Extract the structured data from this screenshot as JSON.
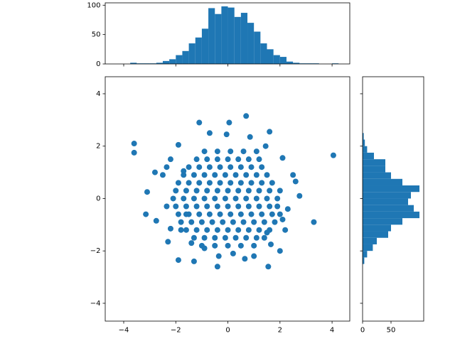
{
  "chart_data": [
    {
      "type": "scatter",
      "color": "#1f77b4",
      "xlim": [
        -4.71,
        4.68
      ],
      "ylim": [
        -4.68,
        4.65
      ],
      "xticks": [
        {
          "value": -4,
          "label": "−4"
        },
        {
          "value": -2,
          "label": "−2"
        },
        0,
        2,
        4
      ],
      "yticks": [
        {
          "value": -4,
          "label": "−4"
        },
        {
          "value": -2,
          "label": "−2"
        },
        0,
        2,
        4
      ],
      "x": [
        -1.0,
        -0.5,
        0.0,
        0.5,
        1.0,
        -1.3,
        -0.9,
        -0.5,
        -0.1,
        0.3,
        0.7,
        1.1,
        1.4,
        -1.6,
        -1.2,
        -0.8,
        -0.4,
        0,
        0.4,
        0.8,
        1.2,
        1.6,
        -1.8,
        -1.4,
        -1.0,
        -0.6,
        -0.2,
        0.2,
        0.6,
        1.0,
        1.4,
        1.8,
        -1.9,
        -1.5,
        -1.1,
        -0.7,
        -0.3,
        0.1,
        0.5,
        0.9,
        1.3,
        1.7,
        2.0,
        -2.0,
        -1.6,
        -1.2,
        -0.8,
        -0.4,
        0,
        0.4,
        0.8,
        1.2,
        1.6,
        1.9,
        -2.1,
        -1.7,
        -1.3,
        -0.9,
        -0.5,
        -0.1,
        0.3,
        0.7,
        1.1,
        1.5,
        1.9,
        -2.0,
        -1.6,
        -1.2,
        -0.8,
        -0.4,
        0,
        0.4,
        0.8,
        1.2,
        1.6,
        2.0,
        -1.9,
        -1.5,
        -1.1,
        -0.7,
        -0.3,
        0.1,
        0.5,
        0.9,
        1.3,
        1.7,
        -1.7,
        -1.3,
        -0.9,
        -0.5,
        -0.1,
        0.3,
        0.7,
        1.1,
        1.5,
        -1.5,
        -1.1,
        -0.7,
        -0.3,
        0.1,
        0.5,
        0.9,
        1.3,
        -1.2,
        -0.8,
        -0.4,
        0,
        0.4,
        0.8,
        1.2,
        -0.9,
        -0.4,
        0.1,
        0.6,
        1.1,
        -3.6,
        -3.6,
        4.05,
        -3.1,
        -3.15,
        -2.75,
        3.3,
        -2.3,
        -1.9,
        -1.3,
        -0.4,
        0.65,
        1.55,
        0.7,
        -1.1,
        0.05,
        1.6,
        0.85,
        -0.7,
        -0.05,
        -1.9,
        -2.8,
        -2.2,
        2.75,
        2.6,
        2.5,
        2.3,
        2.1,
        2.2,
        2.0,
        1.65,
        -2.35,
        -2.2,
        -2.5,
        -2.35,
        -1.7,
        -1.6,
        2.1,
        1.45,
        -0.35,
        0.2,
        1.0,
        -1.4,
        -0.9,
        1.5,
        -1.8
      ],
      "y": [
        -1.8,
        -1.8,
        -1.8,
        -1.8,
        -1.8,
        -1.5,
        -1.5,
        -1.5,
        -1.5,
        -1.5,
        -1.5,
        -1.5,
        -1.5,
        -1.2,
        -1.2,
        -1.2,
        -1.2,
        -1.2,
        -1.2,
        -1.2,
        -1.2,
        -1.2,
        -0.9,
        -0.9,
        -0.9,
        -0.9,
        -0.9,
        -0.9,
        -0.9,
        -0.9,
        -0.9,
        -0.9,
        -0.6,
        -0.6,
        -0.6,
        -0.6,
        -0.6,
        -0.6,
        -0.6,
        -0.6,
        -0.6,
        -0.6,
        -0.6,
        -0.3,
        -0.3,
        -0.3,
        -0.3,
        -0.3,
        -0.3,
        -0.3,
        -0.3,
        -0.3,
        -0.3,
        -0.3,
        0,
        0,
        0,
        0,
        0,
        0,
        0,
        0,
        0,
        0,
        0,
        0.3,
        0.3,
        0.3,
        0.3,
        0.3,
        0.3,
        0.3,
        0.3,
        0.3,
        0.3,
        0.3,
        0.6,
        0.6,
        0.6,
        0.6,
        0.6,
        0.6,
        0.6,
        0.6,
        0.6,
        0.6,
        0.9,
        0.9,
        0.9,
        0.9,
        0.9,
        0.9,
        0.9,
        0.9,
        0.9,
        1.2,
        1.2,
        1.2,
        1.2,
        1.2,
        1.2,
        1.2,
        1.2,
        1.5,
        1.5,
        1.5,
        1.5,
        1.5,
        1.5,
        1.5,
        1.8,
        1.8,
        1.8,
        1.8,
        1.8,
        2.1,
        1.75,
        1.65,
        0.25,
        -0.6,
        -0.85,
        -0.9,
        -1.65,
        -2.35,
        -2.4,
        -2.6,
        -2.3,
        -2.6,
        3.15,
        2.9,
        2.9,
        2.55,
        2.35,
        2.5,
        2.45,
        2.05,
        1.0,
        1.5,
        0.1,
        0.65,
        0.9,
        -0.4,
        -0.8,
        -1.2,
        -2.0,
        -1.75,
        -0.3,
        -1.15,
        0.9,
        1.2,
        1.05,
        -0.6,
        1.55,
        2.0,
        -2.2,
        -2.1,
        -2.2,
        -1.7,
        -1.9,
        -1.3,
        -1.2
      ]
    },
    {
      "type": "histogram",
      "orientation": "vertical",
      "color": "#1f77b4",
      "ylim": [
        0,
        104
      ],
      "yticks": [
        0,
        50,
        100
      ],
      "bins": [
        -4.25,
        -4,
        -3.75,
        -3.5,
        -3.25,
        -3,
        -2.75,
        -2.5,
        -2.25,
        -2,
        -1.75,
        -1.5,
        -1.25,
        -1,
        -0.75,
        -0.5,
        -0.25,
        0,
        0.25,
        0.5,
        0.75,
        1,
        1.25,
        1.5,
        1.75,
        2,
        2.25,
        2.5,
        2.75,
        3,
        3.25,
        3.5,
        3.75,
        4,
        4.25
      ],
      "values": [
        0,
        0,
        2,
        1,
        1,
        1,
        2,
        5,
        8,
        15,
        22,
        35,
        45,
        60,
        95,
        85,
        98,
        96,
        80,
        87,
        70,
        55,
        35,
        25,
        15,
        12,
        4,
        2,
        1,
        1,
        1,
        0,
        0,
        1
      ]
    },
    {
      "type": "histogram",
      "orientation": "horizontal",
      "color": "#1f77b4",
      "xlim": [
        0,
        107.5
      ],
      "xticks": [
        0,
        50
      ],
      "bins": [
        -4.25,
        -4,
        -3.75,
        -3.5,
        -3.25,
        -3,
        -2.75,
        -2.5,
        -2.25,
        -2,
        -1.75,
        -1.5,
        -1.25,
        -1,
        -0.75,
        -0.5,
        -0.25,
        0,
        0.25,
        0.5,
        0.75,
        1,
        1.25,
        1.5,
        1.75,
        2,
        2.25,
        2.5,
        2.75,
        3,
        3.25,
        3.5,
        3.75,
        4,
        4.25
      ],
      "values": [
        0,
        0,
        0,
        0,
        0,
        0,
        0,
        3,
        8,
        18,
        25,
        45,
        50,
        70,
        100,
        90,
        80,
        85,
        100,
        70,
        50,
        40,
        40,
        20,
        8,
        4,
        2,
        0,
        0,
        0,
        0,
        0,
        0,
        0
      ]
    }
  ]
}
